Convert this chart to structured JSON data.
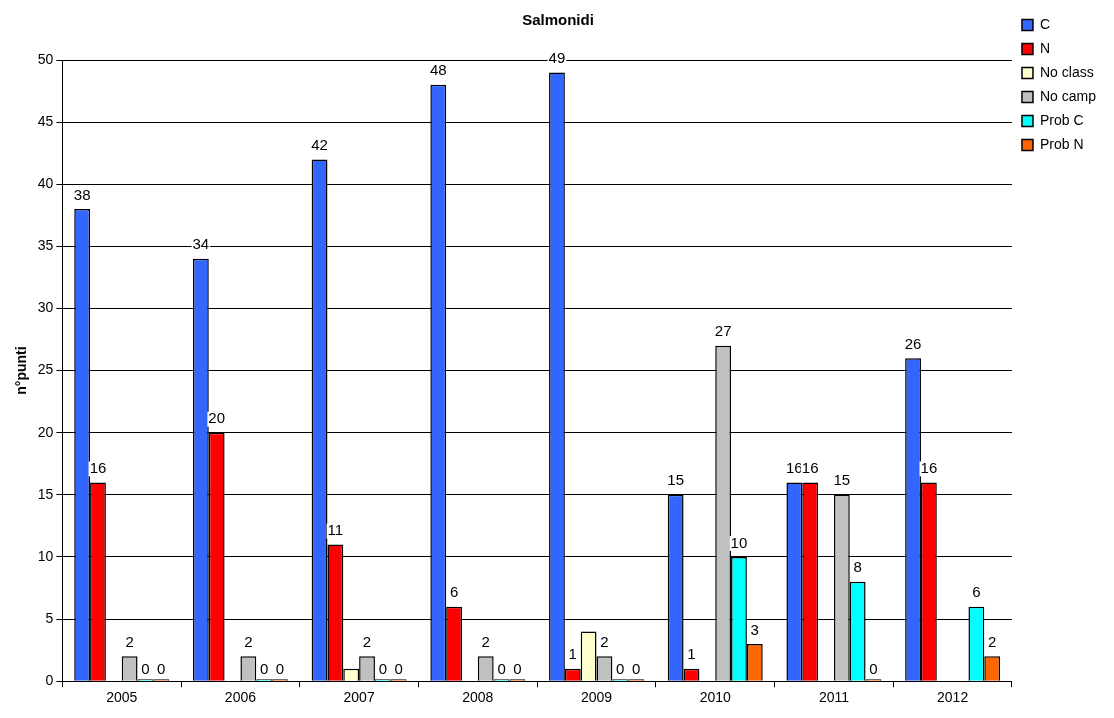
{
  "chart_data": {
    "type": "bar",
    "title": "Salmonidi",
    "ylabel": "n°punti",
    "categories": [
      "2005",
      "2006",
      "2007",
      "2008",
      "2009",
      "2010",
      "2011",
      "2012"
    ],
    "ylim": [
      0,
      50
    ],
    "yticks": [
      0,
      5,
      10,
      15,
      20,
      25,
      30,
      35,
      40,
      45,
      50
    ],
    "grid": "y",
    "legend": "top right",
    "series": [
      {
        "name": "C",
        "color": "#3366ff",
        "values": [
          38,
          34,
          42,
          48,
          49,
          15,
          16,
          26
        ],
        "value_labels": [
          "38",
          "34",
          "42",
          "48",
          "49",
          "15",
          "16",
          "26"
        ]
      },
      {
        "name": "N",
        "color": "#ff0000",
        "values": [
          16,
          20,
          11,
          6,
          1,
          1,
          16,
          16
        ],
        "value_labels": [
          "16",
          "20",
          "11",
          "6",
          "1",
          "1",
          "16",
          "16"
        ]
      },
      {
        "name": "No class",
        "color": "#ffffcc",
        "values": [
          null,
          null,
          1,
          null,
          4,
          null,
          null,
          null
        ],
        "value_labels": [
          null,
          null,
          null,
          null,
          null,
          null,
          null,
          null
        ]
      },
      {
        "name": "No camp",
        "color": "#c0c0c0",
        "values": [
          2,
          2,
          2,
          2,
          2,
          27,
          15,
          null
        ],
        "value_labels": [
          "2",
          "2",
          "2",
          "2",
          "2",
          "27",
          "15",
          null
        ]
      },
      {
        "name": "Prob C",
        "color": "#00ffff",
        "values": [
          0,
          0,
          0,
          0,
          0,
          10,
          8,
          6
        ],
        "value_labels": [
          "0",
          "0",
          "0",
          "0",
          "0",
          "10",
          "8",
          "6"
        ]
      },
      {
        "name": "Prob N",
        "color": "#ff6600",
        "values": [
          0,
          0,
          0,
          0,
          0,
          3,
          0,
          2
        ],
        "value_labels": [
          "0",
          "0",
          "0",
          "0",
          "0",
          "3",
          "0",
          "2"
        ]
      }
    ]
  }
}
